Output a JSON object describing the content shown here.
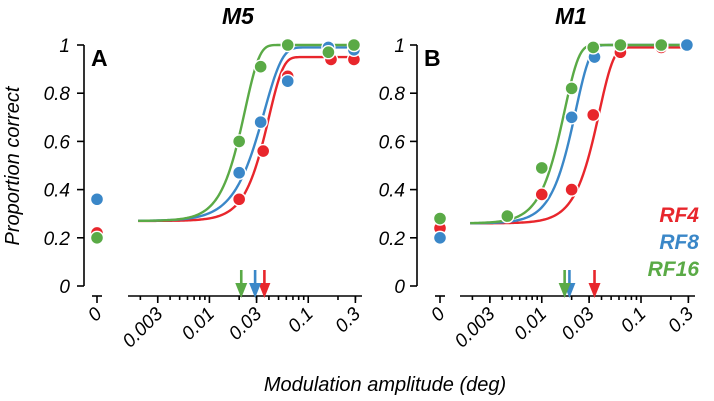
{
  "figure": {
    "ylabel": "Proportion correct",
    "xlabel": "Modulation amplitude (deg)"
  },
  "legend": [
    {
      "label": "RF4",
      "color": "#e8262c"
    },
    {
      "label": "RF8",
      "color": "#3a87c8"
    },
    {
      "label": "RF16",
      "color": "#5aaa46"
    }
  ],
  "chart_data": [
    {
      "type": "scatter",
      "title": "M5",
      "panel_label": "A",
      "xlabel": "Modulation amplitude (deg)",
      "ylabel": "Proportion correct",
      "xscale": "log",
      "xlim": [
        0.0015,
        0.35
      ],
      "ylim": [
        0,
        1
      ],
      "xticks": [
        {
          "v": 0.003,
          "label": "0.003"
        },
        {
          "v": 0.01,
          "label": "0.01"
        },
        {
          "v": 0.03,
          "label": "0.03"
        },
        {
          "v": 0.1,
          "label": "0.1"
        },
        {
          "v": 0.3,
          "label": "0.3"
        }
      ],
      "yticks": [
        {
          "v": 0,
          "label": "0"
        },
        {
          "v": 0.2,
          "label": "0.2"
        },
        {
          "v": 0.4,
          "label": "0.4"
        },
        {
          "v": 0.6,
          "label": "0.6"
        },
        {
          "v": 0.8,
          "label": "0.8"
        },
        {
          "v": 1,
          "label": "1"
        }
      ],
      "zero_label": "0",
      "series": [
        {
          "name": "RF4",
          "color": "#e8262c",
          "zero": 0.22,
          "x": [
            0.02,
            0.035,
            0.062,
            0.17,
            0.29
          ],
          "y": [
            0.36,
            0.56,
            0.87,
            0.94,
            0.94
          ],
          "fit": {
            "lo": 0.27,
            "hi": 0.95,
            "t": 0.04,
            "s": 3.0
          },
          "threshold": 0.036
        },
        {
          "name": "RF8",
          "color": "#3a87c8",
          "zero": 0.36,
          "x": [
            0.02,
            0.033,
            0.062,
            0.16,
            0.29
          ],
          "y": [
            0.47,
            0.68,
            0.85,
            0.99,
            0.98
          ],
          "fit": {
            "lo": 0.27,
            "hi": 0.99,
            "t": 0.036,
            "s": 2.4
          },
          "threshold": 0.029
        },
        {
          "name": "RF16",
          "color": "#5aaa46",
          "zero": 0.2,
          "x": [
            0.02,
            0.033,
            0.062,
            0.16,
            0.29
          ],
          "y": [
            0.6,
            0.91,
            1.0,
            0.97,
            1.0
          ],
          "fit": {
            "lo": 0.27,
            "hi": 1.0,
            "t": 0.023,
            "s": 3.0
          },
          "threshold": 0.021
        }
      ]
    },
    {
      "type": "scatter",
      "title": "M1",
      "panel_label": "B",
      "xlabel": "Modulation amplitude (deg)",
      "ylabel": "Proportion correct",
      "xscale": "log",
      "xlim": [
        0.0015,
        0.35
      ],
      "ylim": [
        0,
        1
      ],
      "xticks": [
        {
          "v": 0.003,
          "label": "0.003"
        },
        {
          "v": 0.01,
          "label": "0.01"
        },
        {
          "v": 0.03,
          "label": "0.03"
        },
        {
          "v": 0.1,
          "label": "0.1"
        },
        {
          "v": 0.3,
          "label": "0.3"
        }
      ],
      "yticks": [
        {
          "v": 0,
          "label": "0"
        },
        {
          "v": 0.2,
          "label": "0.2"
        },
        {
          "v": 0.4,
          "label": "0.4"
        },
        {
          "v": 0.6,
          "label": "0.6"
        },
        {
          "v": 0.8,
          "label": "0.8"
        },
        {
          "v": 1,
          "label": "1"
        }
      ],
      "zero_label": "0",
      "series": [
        {
          "name": "RF4",
          "color": "#e8262c",
          "zero": 0.24,
          "x": [
            0.01,
            0.02,
            0.033,
            0.062,
            0.16
          ],
          "y": [
            0.38,
            0.4,
            0.71,
            0.97,
            0.99
          ],
          "fit": {
            "lo": 0.26,
            "hi": 0.99,
            "t": 0.038,
            "s": 3.0
          },
          "threshold": 0.034
        },
        {
          "name": "RF8",
          "color": "#3a87c8",
          "zero": 0.2,
          "x": [
            0.02,
            0.034,
            0.062,
            0.16,
            0.29
          ],
          "y": [
            0.7,
            0.95,
            1.0,
            1.0,
            1.0
          ],
          "fit": {
            "lo": 0.26,
            "hi": 1.0,
            "t": 0.022,
            "s": 3.0
          },
          "threshold": 0.019
        },
        {
          "name": "RF16",
          "color": "#5aaa46",
          "zero": 0.28,
          "x": [
            0.0045,
            0.01,
            0.02,
            0.033,
            0.062,
            0.16
          ],
          "y": [
            0.29,
            0.49,
            0.82,
            0.99,
            1.0,
            1.0
          ],
          "fit": {
            "lo": 0.26,
            "hi": 1.0,
            "t": 0.017,
            "s": 3.0
          },
          "threshold": 0.017
        }
      ]
    }
  ]
}
